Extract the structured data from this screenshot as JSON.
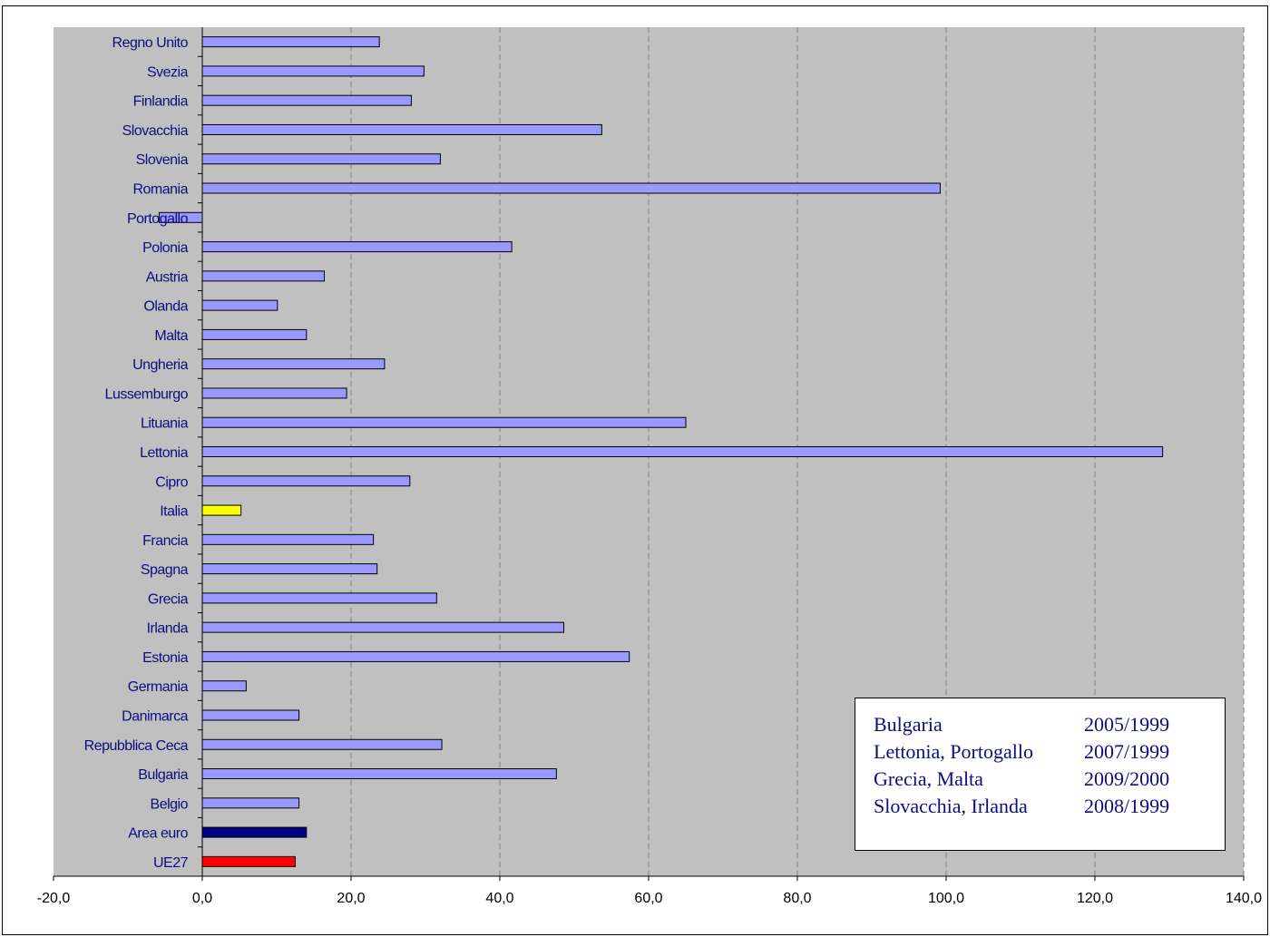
{
  "chart_data": {
    "type": "bar",
    "orientation": "horizontal",
    "categories": [
      "UE27",
      "Area euro",
      "Belgio",
      "Bulgaria",
      "Repubblica Ceca",
      "Danimarca",
      "Germania",
      "Estonia",
      "Irlanda",
      "Grecia",
      "Spagna",
      "Francia",
      "Italia",
      "Cipro",
      "Lettonia",
      "Lituania",
      "Lussemburgo",
      "Ungheria",
      "Malta",
      "Olanda",
      "Austria",
      "Polonia",
      "Portogallo",
      "Romania",
      "Slovenia",
      "Slovacchia",
      "Finlandia",
      "Svezia",
      "Regno Unito"
    ],
    "values": [
      12.5,
      14.0,
      13.0,
      47.6,
      32.2,
      13.0,
      5.9,
      57.4,
      48.6,
      31.5,
      23.5,
      23.0,
      5.2,
      27.9,
      129.1,
      65.0,
      19.4,
      24.5,
      14.0,
      10.1,
      16.4,
      41.6,
      -5.8,
      99.2,
      32.0,
      53.7,
      28.1,
      29.8,
      23.8
    ],
    "bar_colors": [
      "#ff0000",
      "#000080",
      "#9999ff",
      "#9999ff",
      "#9999ff",
      "#9999ff",
      "#9999ff",
      "#9999ff",
      "#9999ff",
      "#9999ff",
      "#9999ff",
      "#9999ff",
      "#ffff00",
      "#9999ff",
      "#9999ff",
      "#9999ff",
      "#9999ff",
      "#9999ff",
      "#9999ff",
      "#9999ff",
      "#9999ff",
      "#9999ff",
      "#9999ff",
      "#9999ff",
      "#9999ff",
      "#9999ff",
      "#9999ff",
      "#9999ff",
      "#9999ff"
    ],
    "xlim": [
      -20,
      140
    ],
    "xticks": [
      -20,
      0,
      20,
      40,
      60,
      80,
      100,
      120,
      140
    ],
    "xtick_labels": [
      "-20,0",
      "0,0",
      "20,0",
      "40,0",
      "60,0",
      "80,0",
      "100,0",
      "120,0",
      "140,0"
    ],
    "grid": "vertical dashed",
    "plot_background": "#c0c0c0",
    "label_color": "#0d0d80",
    "title": "",
    "xlabel": "",
    "ylabel": ""
  },
  "legend": {
    "placement": "bottom-right",
    "rows": [
      {
        "countries": "Bulgaria",
        "period": "2005/1999"
      },
      {
        "countries": "Lettonia, Portogallo",
        "period": "2007/1999"
      },
      {
        "countries": "Grecia, Malta",
        "period": "2009/2000"
      },
      {
        "countries": "Slovacchia, Irlanda",
        "period": "2008/1999"
      }
    ]
  }
}
